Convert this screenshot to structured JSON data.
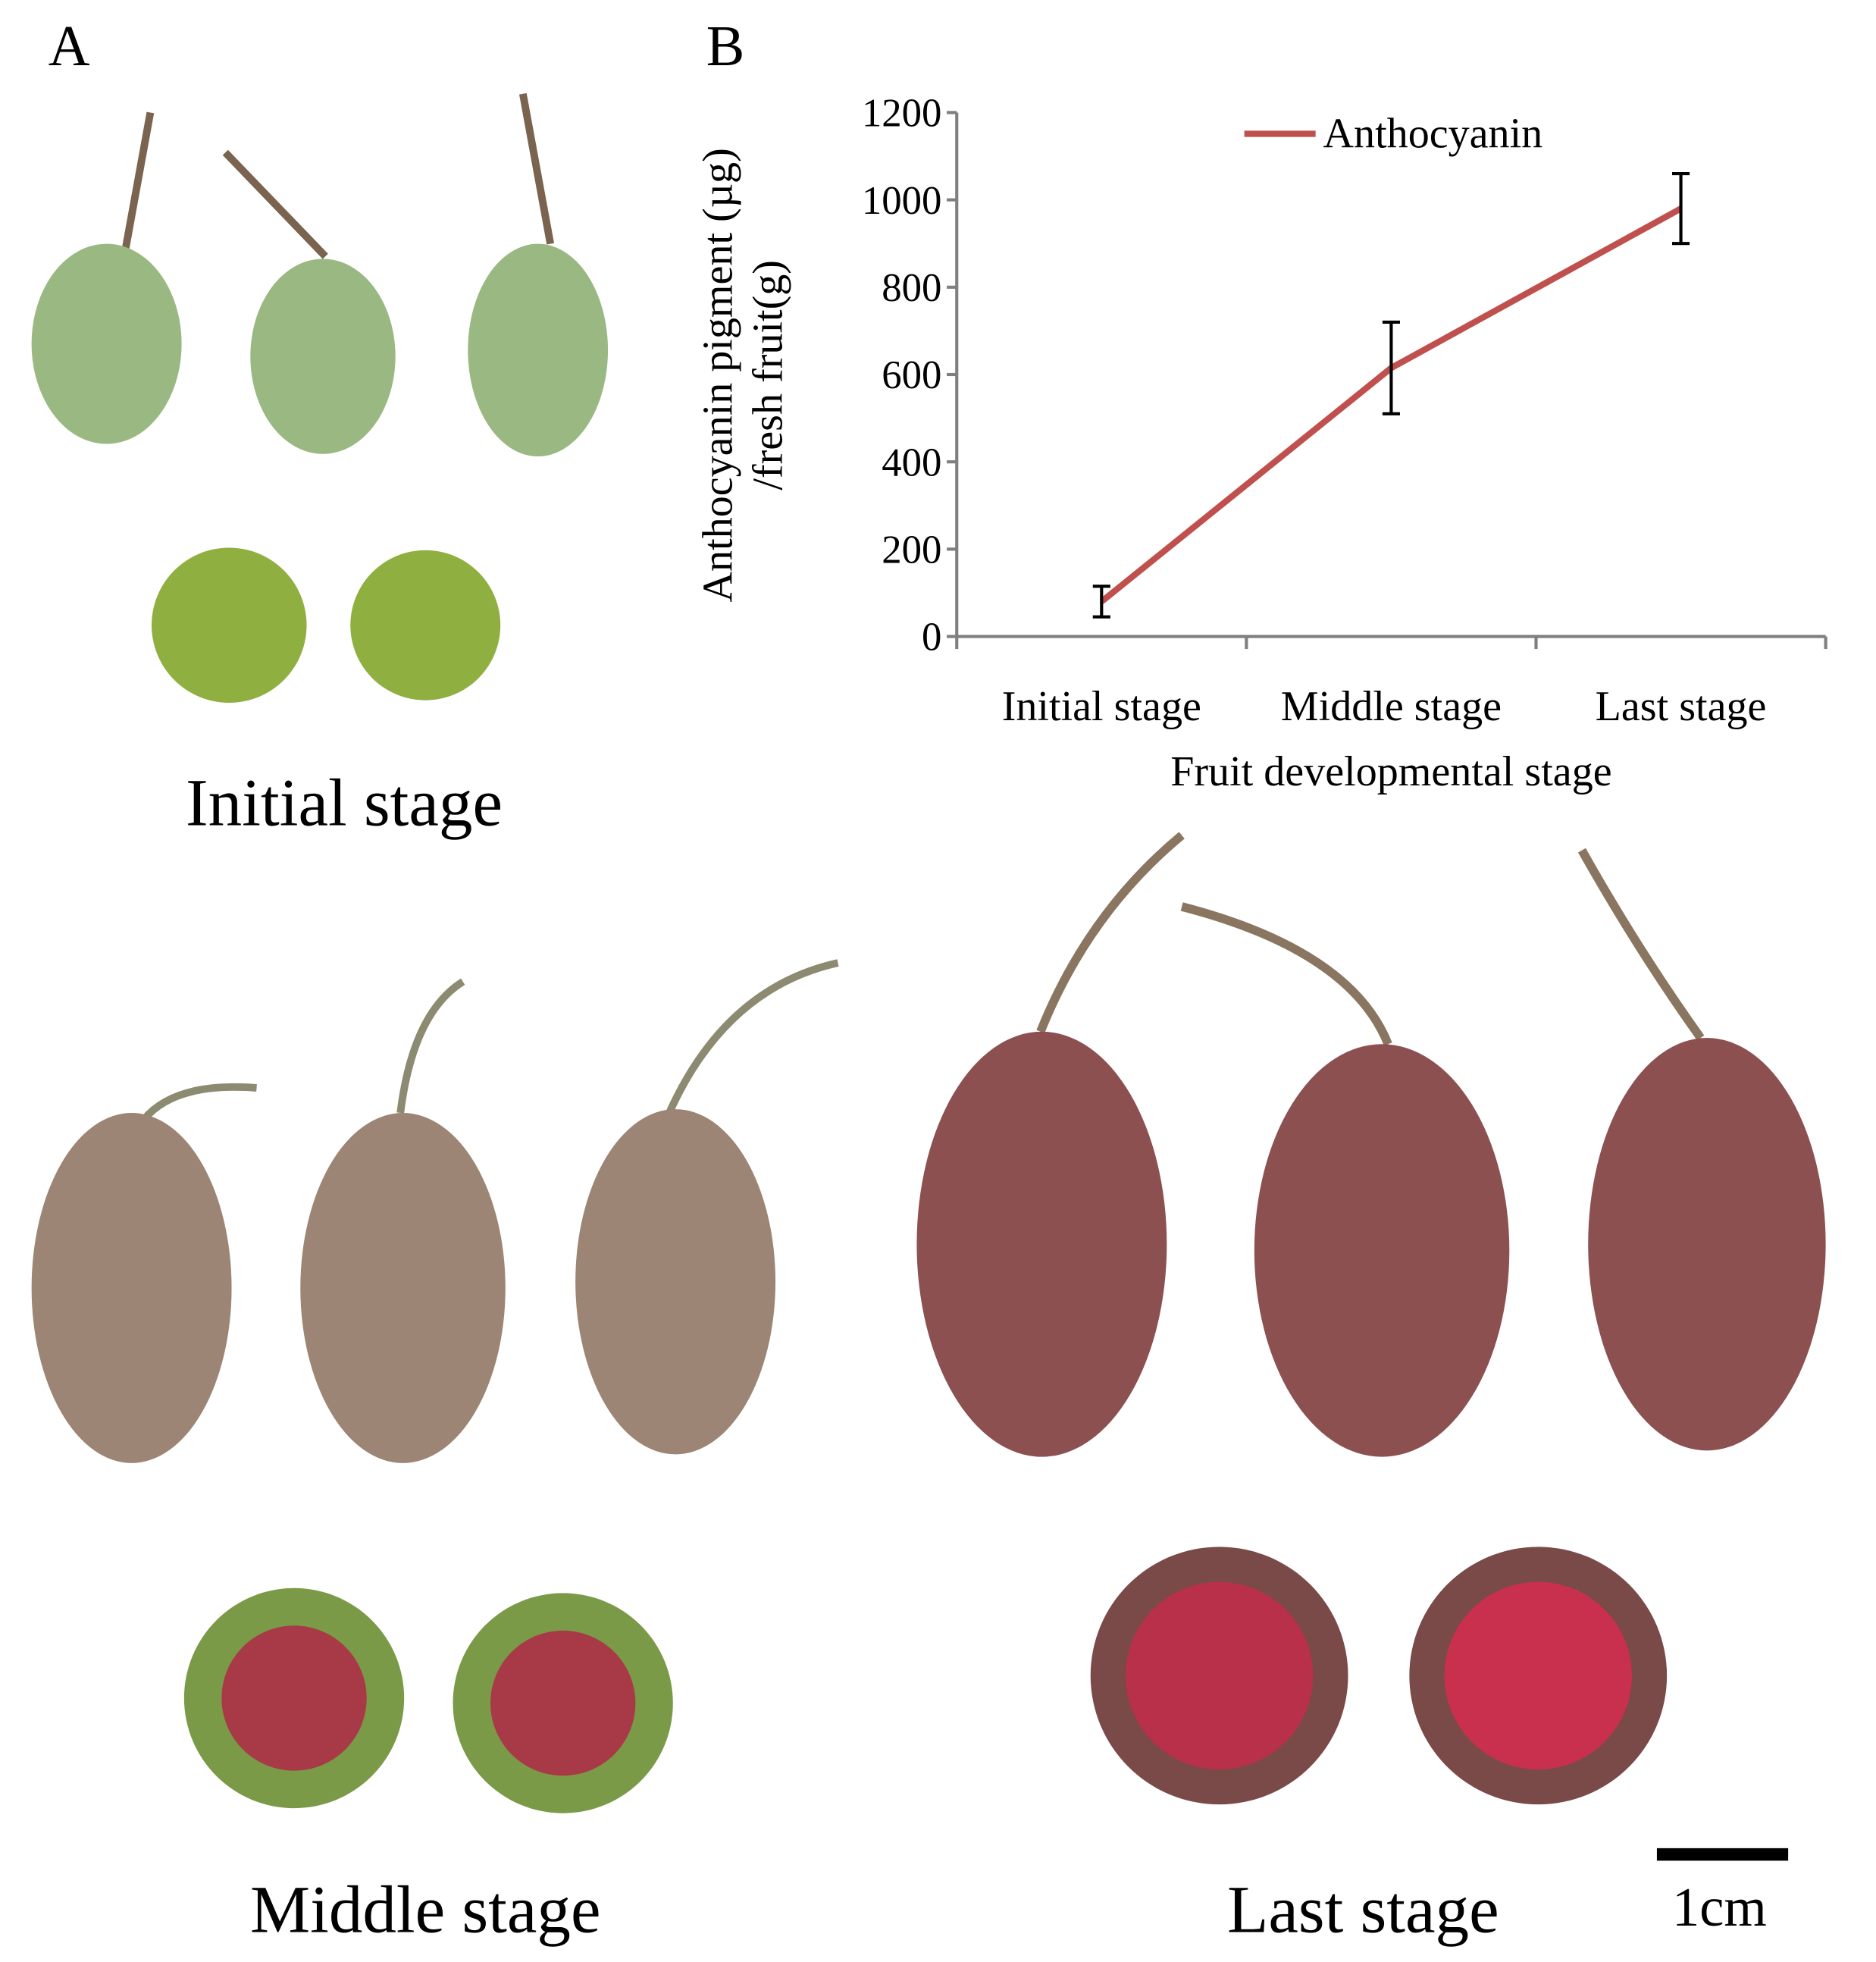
{
  "panel_labels": [
    "A",
    "B"
  ],
  "photo_captions": [
    "Initial stage",
    "Middle stage",
    "Last stage"
  ],
  "scale_bar": "1cm",
  "chart_data": {
    "type": "line",
    "ylabel": [
      "Anthocyanin pigment (µg)",
      "/fresh fruit(g)"
    ],
    "xlabel": "Fruit developmental stage",
    "categories": [
      "Initial stage",
      "Middle stage",
      "Last stage"
    ],
    "series": [
      {
        "name": "Anthocyanin",
        "color": "#c0504d",
        "values": [
          80,
          615,
          980
        ],
        "errors": [
          35,
          105,
          80
        ]
      }
    ],
    "ylim": [
      0,
      1200
    ],
    "yticks": [
      0,
      200,
      400,
      600,
      800,
      1000,
      1200
    ],
    "legend": "top"
  }
}
